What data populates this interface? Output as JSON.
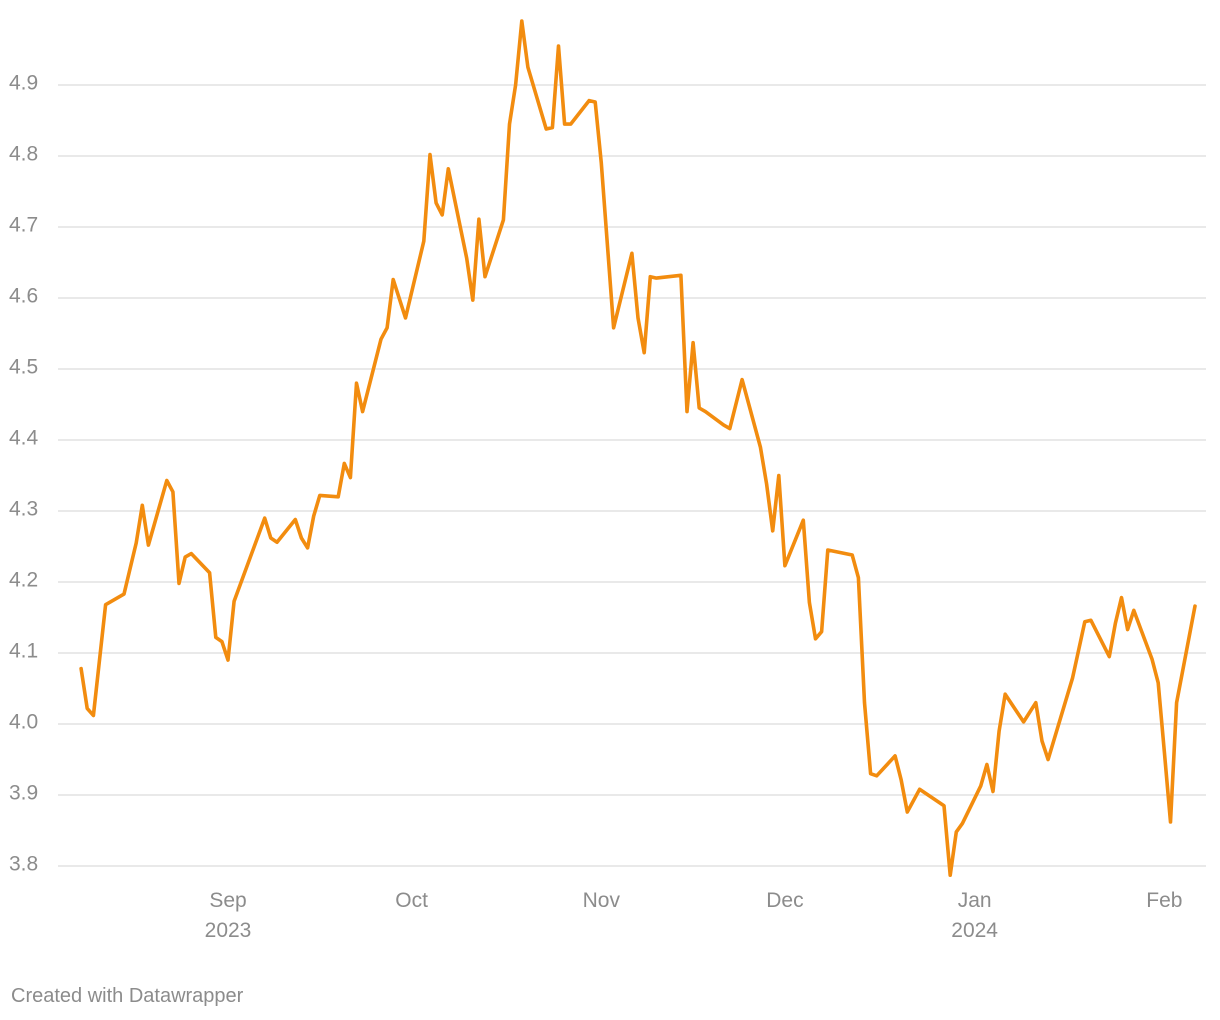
{
  "chart_data": {
    "type": "line",
    "title": "",
    "xlabel": "",
    "ylabel": "",
    "ylim": [
      3.8,
      4.9
    ],
    "yticks": [
      "4.9",
      "4.8",
      "4.7",
      "4.6",
      "4.5",
      "4.4",
      "4.3",
      "4.2",
      "4.1",
      "4.0",
      "3.9",
      "3.8"
    ],
    "grid": true,
    "line_color": "#f28c0f",
    "xticks": [
      {
        "date": "2023-09-01",
        "label": "Sep",
        "sublabel": "2023"
      },
      {
        "date": "2023-10-01",
        "label": "Oct",
        "sublabel": ""
      },
      {
        "date": "2023-11-01",
        "label": "Nov",
        "sublabel": ""
      },
      {
        "date": "2023-12-01",
        "label": "Dec",
        "sublabel": ""
      },
      {
        "date": "2024-01-01",
        "label": "Jan",
        "sublabel": "2024"
      },
      {
        "date": "2024-02-01",
        "label": "Feb",
        "sublabel": ""
      }
    ],
    "series": [
      {
        "name": "",
        "points": [
          [
            "2023-08-08",
            4.078
          ],
          [
            "2023-08-09",
            4.022
          ],
          [
            "2023-08-10",
            4.012
          ],
          [
            "2023-08-11",
            4.09
          ],
          [
            "2023-08-12",
            4.168
          ],
          [
            "2023-08-15",
            4.183
          ],
          [
            "2023-08-17",
            4.255
          ],
          [
            "2023-08-18",
            4.308
          ],
          [
            "2023-08-19",
            4.252
          ],
          [
            "2023-08-22",
            4.343
          ],
          [
            "2023-08-23",
            4.327
          ],
          [
            "2023-08-24",
            4.198
          ],
          [
            "2023-08-25",
            4.235
          ],
          [
            "2023-08-26",
            4.24
          ],
          [
            "2023-08-29",
            4.213
          ],
          [
            "2023-08-30",
            4.122
          ],
          [
            "2023-08-31",
            4.116
          ],
          [
            "2023-09-01",
            4.09
          ],
          [
            "2023-09-02",
            4.173
          ],
          [
            "2023-09-07",
            4.29
          ],
          [
            "2023-09-08",
            4.262
          ],
          [
            "2023-09-09",
            4.256
          ],
          [
            "2023-09-12",
            4.288
          ],
          [
            "2023-09-13",
            4.262
          ],
          [
            "2023-09-14",
            4.248
          ],
          [
            "2023-09-15",
            4.293
          ],
          [
            "2023-09-16",
            4.322
          ],
          [
            "2023-09-19",
            4.32
          ],
          [
            "2023-09-20",
            4.367
          ],
          [
            "2023-09-21",
            4.347
          ],
          [
            "2023-09-22",
            4.48
          ],
          [
            "2023-09-23",
            4.44
          ],
          [
            "2023-09-26",
            4.542
          ],
          [
            "2023-09-27",
            4.558
          ],
          [
            "2023-09-28",
            4.626
          ],
          [
            "2023-09-30",
            4.572
          ],
          [
            "2023-10-03",
            4.68
          ],
          [
            "2023-10-04",
            4.802
          ],
          [
            "2023-10-05",
            4.734
          ],
          [
            "2023-10-06",
            4.717
          ],
          [
            "2023-10-07",
            4.782
          ],
          [
            "2023-10-10",
            4.656
          ],
          [
            "2023-10-11",
            4.597
          ],
          [
            "2023-10-12",
            4.711
          ],
          [
            "2023-10-13",
            4.63
          ],
          [
            "2023-10-16",
            4.71
          ],
          [
            "2023-10-17",
            4.845
          ],
          [
            "2023-10-18",
            4.9
          ],
          [
            "2023-10-19",
            4.99
          ],
          [
            "2023-10-20",
            4.925
          ],
          [
            "2023-10-23",
            4.838
          ],
          [
            "2023-10-24",
            4.84
          ],
          [
            "2023-10-25",
            4.955
          ],
          [
            "2023-10-26",
            4.845
          ],
          [
            "2023-10-27",
            4.845
          ],
          [
            "2023-10-30",
            4.878
          ],
          [
            "2023-10-31",
            4.876
          ],
          [
            "2023-11-01",
            4.79
          ],
          [
            "2023-11-03",
            4.558
          ],
          [
            "2023-11-06",
            4.663
          ],
          [
            "2023-11-07",
            4.572
          ],
          [
            "2023-11-08",
            4.523
          ],
          [
            "2023-11-09",
            4.63
          ],
          [
            "2023-11-10",
            4.628
          ],
          [
            "2023-11-14",
            4.632
          ],
          [
            "2023-11-15",
            4.44
          ],
          [
            "2023-11-16",
            4.537
          ],
          [
            "2023-11-17",
            4.445
          ],
          [
            "2023-11-18",
            4.44
          ],
          [
            "2023-11-21",
            4.421
          ],
          [
            "2023-11-22",
            4.416
          ],
          [
            "2023-11-24",
            4.485
          ],
          [
            "2023-11-27",
            4.39
          ],
          [
            "2023-11-28",
            4.338
          ],
          [
            "2023-11-29",
            4.272
          ],
          [
            "2023-11-30",
            4.35
          ],
          [
            "2023-12-01",
            4.223
          ],
          [
            "2023-12-04",
            4.287
          ],
          [
            "2023-12-05",
            4.171
          ],
          [
            "2023-12-06",
            4.12
          ],
          [
            "2023-12-07",
            4.13
          ],
          [
            "2023-12-08",
            4.245
          ],
          [
            "2023-12-12",
            4.238
          ],
          [
            "2023-12-13",
            4.206
          ],
          [
            "2023-12-14",
            4.03
          ],
          [
            "2023-12-15",
            3.93
          ],
          [
            "2023-12-16",
            3.927
          ],
          [
            "2023-12-19",
            3.955
          ],
          [
            "2023-12-20",
            3.921
          ],
          [
            "2023-12-21",
            3.876
          ],
          [
            "2023-12-23",
            3.908
          ],
          [
            "2023-12-27",
            3.885
          ],
          [
            "2023-12-28",
            3.787
          ],
          [
            "2023-12-29",
            3.848
          ],
          [
            "2023-12-30",
            3.86
          ],
          [
            "2024-01-02",
            3.913
          ],
          [
            "2024-01-03",
            3.943
          ],
          [
            "2024-01-04",
            3.905
          ],
          [
            "2024-01-05",
            3.99
          ],
          [
            "2024-01-06",
            4.042
          ],
          [
            "2024-01-09",
            4.003
          ],
          [
            "2024-01-11",
            4.03
          ],
          [
            "2024-01-12",
            3.976
          ],
          [
            "2024-01-13",
            3.95
          ],
          [
            "2024-01-17",
            4.065
          ],
          [
            "2024-01-19",
            4.144
          ],
          [
            "2024-01-20",
            4.146
          ],
          [
            "2024-01-23",
            4.095
          ],
          [
            "2024-01-24",
            4.142
          ],
          [
            "2024-01-25",
            4.178
          ],
          [
            "2024-01-26",
            4.133
          ],
          [
            "2024-01-27",
            4.16
          ],
          [
            "2024-01-30",
            4.091
          ],
          [
            "2024-01-31",
            4.058
          ],
          [
            "2024-02-01",
            3.96
          ],
          [
            "2024-02-02",
            3.862
          ],
          [
            "2024-02-03",
            4.03
          ],
          [
            "2024-02-06",
            4.166
          ]
        ]
      }
    ]
  },
  "footer": {
    "credit": "Created with Datawrapper"
  }
}
